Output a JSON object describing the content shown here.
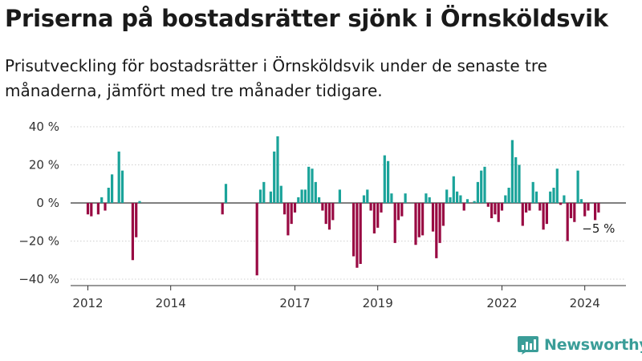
{
  "header": {
    "title": "Priserna på bostadsrätter sjönk i Örnsköldsvik",
    "subtitle": "Prisutveckling för bostadsrätter i Örnsköldsvik under de senaste tre månaderna, jämfört med tre månader tidigare."
  },
  "brand": {
    "name": "Newsworthy",
    "logo_icon": "bar-chart-logo-icon",
    "color": "#3a9d98"
  },
  "colors": {
    "positive": "#1aa39a",
    "negative": "#990a43",
    "zero_line": "#333333",
    "grid": "#d0d0d0"
  },
  "chart_data": {
    "type": "bar",
    "x_unit": "month",
    "ylim": [
      -42,
      42
    ],
    "yticks": [
      40,
      20,
      0,
      -20,
      -40
    ],
    "ytick_labels": [
      "40 %",
      "20 %",
      "0 %",
      "−20 %",
      "−40 %"
    ],
    "xticks": [
      {
        "label": "2012",
        "at": "2012-01"
      },
      {
        "label": "2014",
        "at": "2014-01"
      },
      {
        "label": "2017",
        "at": "2017-01"
      },
      {
        "label": "2019",
        "at": "2019-01"
      },
      {
        "label": "2022",
        "at": "2022-01"
      },
      {
        "label": "2024",
        "at": "2024-01"
      }
    ],
    "annotation": {
      "text": "−5 %",
      "at": "2024-03"
    },
    "grid": "horizontal",
    "legend": "none",
    "series": [
      {
        "points": [
          {
            "x": "2012-01",
            "y": -6
          },
          {
            "x": "2012-02",
            "y": -7
          },
          {
            "x": "2012-04",
            "y": -6
          },
          {
            "x": "2012-05",
            "y": 3
          },
          {
            "x": "2012-06",
            "y": -4
          },
          {
            "x": "2012-07",
            "y": 8
          },
          {
            "x": "2012-08",
            "y": 15
          },
          {
            "x": "2012-10",
            "y": 27
          },
          {
            "x": "2012-11",
            "y": 17
          },
          {
            "x": "2013-02",
            "y": -30
          },
          {
            "x": "2013-03",
            "y": -18
          },
          {
            "x": "2013-04",
            "y": 1
          },
          {
            "x": "2015-04",
            "y": -6
          },
          {
            "x": "2015-05",
            "y": 10
          },
          {
            "x": "2016-02",
            "y": -38
          },
          {
            "x": "2016-03",
            "y": 7
          },
          {
            "x": "2016-04",
            "y": 11
          },
          {
            "x": "2016-06",
            "y": 6
          },
          {
            "x": "2016-07",
            "y": 27
          },
          {
            "x": "2016-08",
            "y": 35
          },
          {
            "x": "2016-09",
            "y": 9
          },
          {
            "x": "2016-10",
            "y": -6
          },
          {
            "x": "2016-11",
            "y": -17
          },
          {
            "x": "2016-12",
            "y": -11
          },
          {
            "x": "2017-01",
            "y": -5
          },
          {
            "x": "2017-02",
            "y": 3
          },
          {
            "x": "2017-03",
            "y": 7
          },
          {
            "x": "2017-04",
            "y": 7
          },
          {
            "x": "2017-05",
            "y": 19
          },
          {
            "x": "2017-06",
            "y": 18
          },
          {
            "x": "2017-07",
            "y": 11
          },
          {
            "x": "2017-08",
            "y": 3
          },
          {
            "x": "2017-09",
            "y": -4
          },
          {
            "x": "2017-10",
            "y": -11
          },
          {
            "x": "2017-11",
            "y": -14
          },
          {
            "x": "2017-12",
            "y": -9
          },
          {
            "x": "2018-02",
            "y": 7
          },
          {
            "x": "2018-06",
            "y": -28
          },
          {
            "x": "2018-07",
            "y": -34
          },
          {
            "x": "2018-08",
            "y": -32
          },
          {
            "x": "2018-09",
            "y": 4
          },
          {
            "x": "2018-10",
            "y": 7
          },
          {
            "x": "2018-11",
            "y": -4
          },
          {
            "x": "2018-12",
            "y": -16
          },
          {
            "x": "2019-01",
            "y": -13
          },
          {
            "x": "2019-02",
            "y": -5
          },
          {
            "x": "2019-03",
            "y": 25
          },
          {
            "x": "2019-04",
            "y": 22
          },
          {
            "x": "2019-05",
            "y": 5
          },
          {
            "x": "2019-06",
            "y": -21
          },
          {
            "x": "2019-07",
            "y": -9
          },
          {
            "x": "2019-08",
            "y": -7
          },
          {
            "x": "2019-09",
            "y": 5
          },
          {
            "x": "2019-12",
            "y": -22
          },
          {
            "x": "2020-01",
            "y": -18
          },
          {
            "x": "2020-02",
            "y": -17
          },
          {
            "x": "2020-03",
            "y": 5
          },
          {
            "x": "2020-04",
            "y": 3
          },
          {
            "x": "2020-05",
            "y": -15
          },
          {
            "x": "2020-06",
            "y": -29
          },
          {
            "x": "2020-07",
            "y": -21
          },
          {
            "x": "2020-08",
            "y": -12
          },
          {
            "x": "2020-09",
            "y": 7
          },
          {
            "x": "2020-10",
            "y": 3
          },
          {
            "x": "2020-11",
            "y": 14
          },
          {
            "x": "2020-12",
            "y": 6
          },
          {
            "x": "2021-01",
            "y": 4
          },
          {
            "x": "2021-02",
            "y": -4
          },
          {
            "x": "2021-03",
            "y": 2
          },
          {
            "x": "2021-05",
            "y": 1
          },
          {
            "x": "2021-06",
            "y": 11
          },
          {
            "x": "2021-07",
            "y": 17
          },
          {
            "x": "2021-08",
            "y": 19
          },
          {
            "x": "2021-09",
            "y": -2
          },
          {
            "x": "2021-10",
            "y": -8
          },
          {
            "x": "2021-11",
            "y": -6
          },
          {
            "x": "2021-12",
            "y": -10
          },
          {
            "x": "2022-01",
            "y": -4
          },
          {
            "x": "2022-02",
            "y": 4
          },
          {
            "x": "2022-03",
            "y": 8
          },
          {
            "x": "2022-04",
            "y": 33
          },
          {
            "x": "2022-05",
            "y": 24
          },
          {
            "x": "2022-06",
            "y": 20
          },
          {
            "x": "2022-07",
            "y": -12
          },
          {
            "x": "2022-08",
            "y": -5
          },
          {
            "x": "2022-09",
            "y": -4
          },
          {
            "x": "2022-10",
            "y": 11
          },
          {
            "x": "2022-11",
            "y": 6
          },
          {
            "x": "2022-12",
            "y": -4
          },
          {
            "x": "2023-01",
            "y": -14
          },
          {
            "x": "2023-02",
            "y": -11
          },
          {
            "x": "2023-03",
            "y": 6
          },
          {
            "x": "2023-04",
            "y": 8
          },
          {
            "x": "2023-05",
            "y": 18
          },
          {
            "x": "2023-06",
            "y": -1
          },
          {
            "x": "2023-07",
            "y": 4
          },
          {
            "x": "2023-08",
            "y": -20
          },
          {
            "x": "2023-09",
            "y": -8
          },
          {
            "x": "2023-10",
            "y": -10
          },
          {
            "x": "2023-11",
            "y": 17
          },
          {
            "x": "2023-12",
            "y": 2
          },
          {
            "x": "2024-01",
            "y": -7
          },
          {
            "x": "2024-02",
            "y": -4
          },
          {
            "x": "2024-04",
            "y": -9
          },
          {
            "x": "2024-05",
            "y": -5
          }
        ]
      }
    ]
  }
}
